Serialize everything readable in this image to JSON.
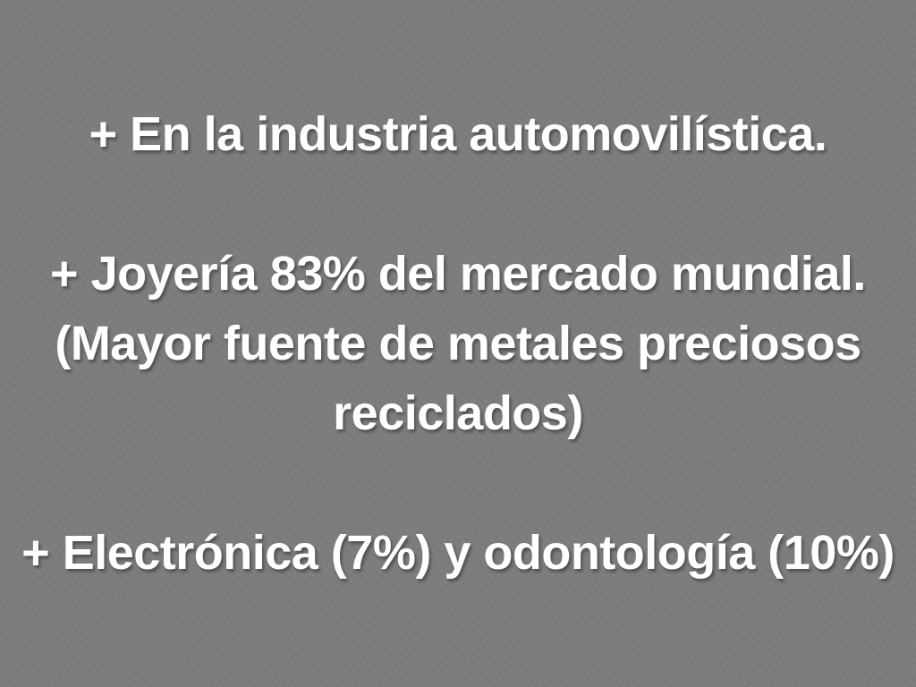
{
  "slide": {
    "background_color": "#7e7c7a",
    "text_color": "#ffffff",
    "bullets": [
      {
        "text": "+ En la industria automovilística."
      },
      {
        "text": "+ Joyería 83% del mercado mundial. (Mayor fuente de metales preciosos reciclados)"
      },
      {
        "text": "+ Electrónica (7%) y odontología (10%)"
      }
    ]
  }
}
